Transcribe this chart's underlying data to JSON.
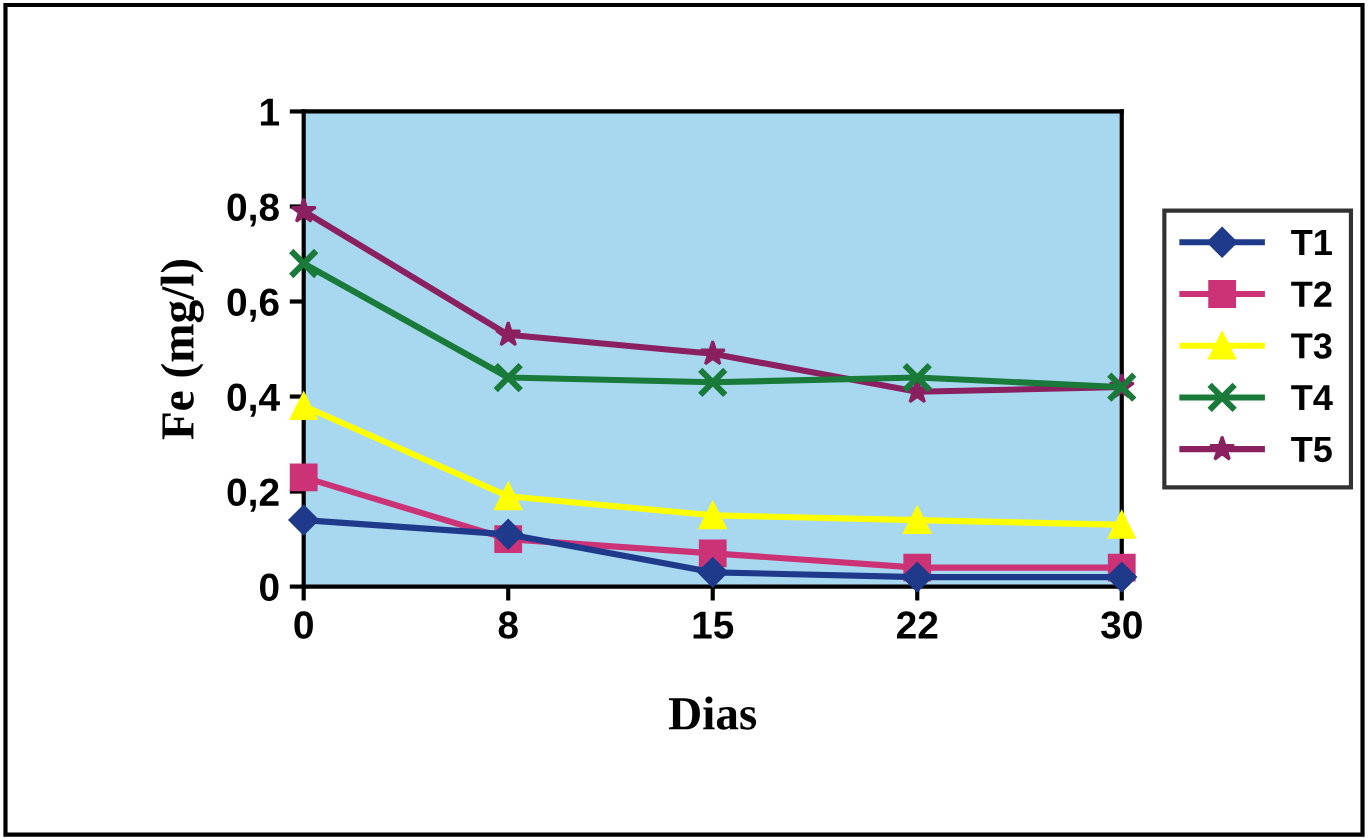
{
  "chart_data": {
    "type": "line",
    "xlabel": "Dias",
    "ylabel": "Fe (mg/l)",
    "categories": [
      "0",
      "8",
      "15",
      "22",
      "30"
    ],
    "series": [
      {
        "name": "T1",
        "color": "#1f3a8a",
        "marker": "diamond",
        "values": [
          0.14,
          0.11,
          0.03,
          0.02,
          0.02
        ]
      },
      {
        "name": "T2",
        "color": "#cc3377",
        "marker": "square",
        "values": [
          0.23,
          0.1,
          0.07,
          0.04,
          0.04
        ]
      },
      {
        "name": "T3",
        "color": "#ffff00",
        "marker": "triangle",
        "values": [
          0.38,
          0.19,
          0.15,
          0.14,
          0.13
        ]
      },
      {
        "name": "T4",
        "color": "#1a7a3a",
        "marker": "cross",
        "values": [
          0.68,
          0.44,
          0.43,
          0.44,
          0.42
        ]
      },
      {
        "name": "T5",
        "color": "#8b2060",
        "marker": "star",
        "values": [
          0.79,
          0.53,
          0.49,
          0.41,
          0.42
        ]
      }
    ],
    "ylim": [
      0,
      1
    ],
    "yticks": [
      0,
      {
        "value": 0.2,
        "label": "0,2"
      },
      {
        "value": 0.4,
        "label": "0,4"
      },
      {
        "value": 0.6,
        "label": "0,6"
      },
      {
        "value": 0.8,
        "label": "0,8"
      },
      1
    ],
    "grid": false,
    "legend": "right",
    "line_style": "solid"
  }
}
